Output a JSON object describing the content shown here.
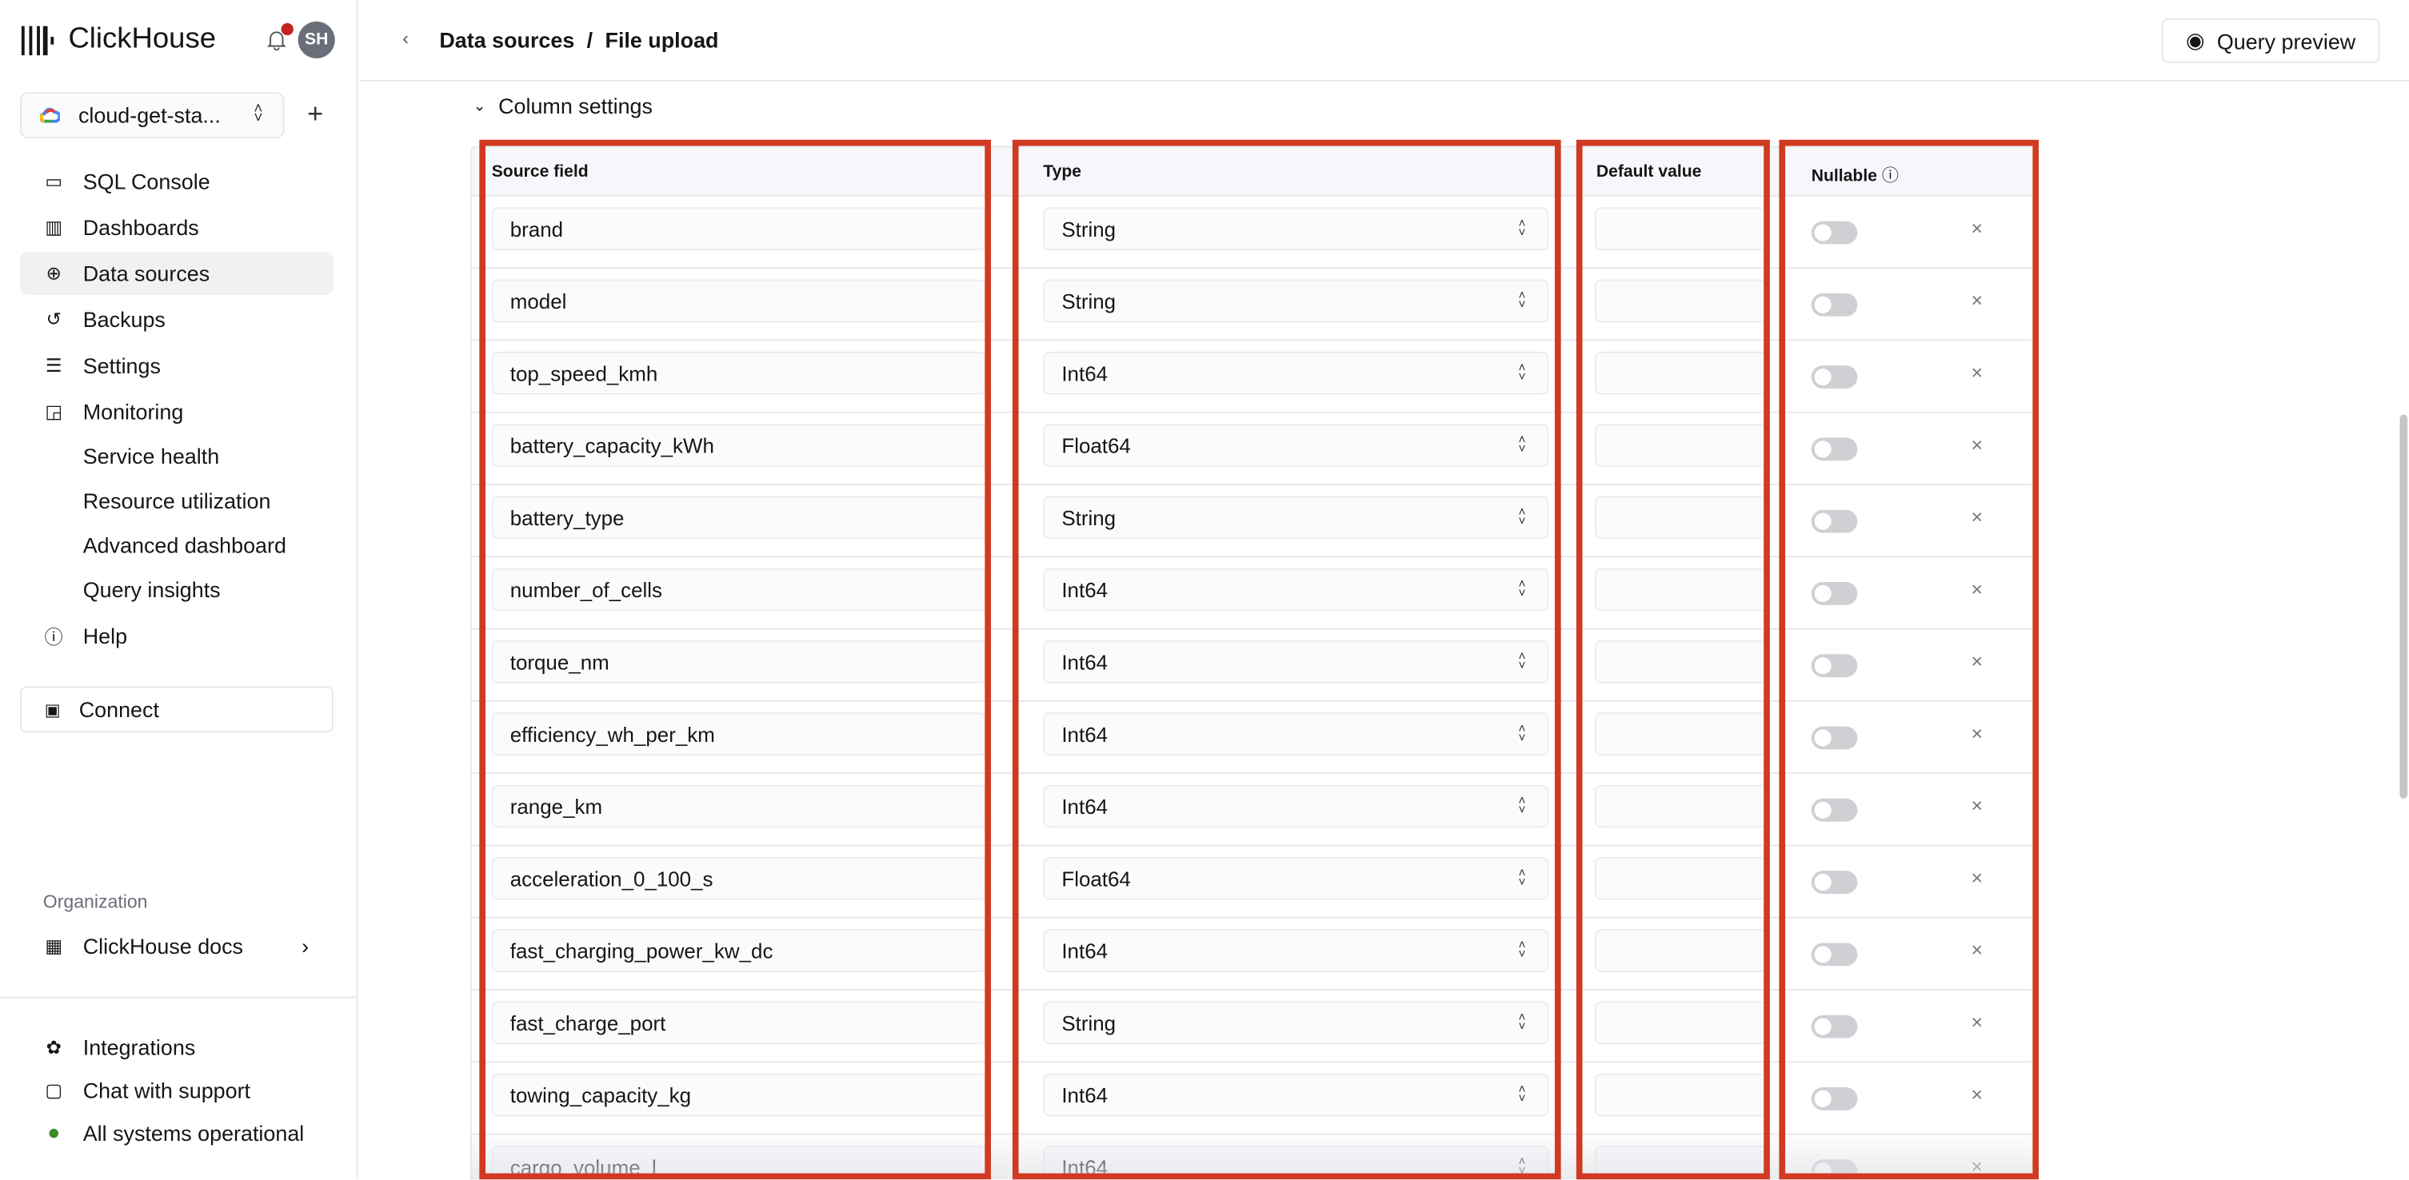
{
  "sidebar": {
    "brand": "ClickHouse",
    "avatar": "SH",
    "service": "cloud-get-sta...",
    "nav": [
      {
        "label": "SQL Console",
        "icon": "sql-console-icon"
      },
      {
        "label": "Dashboards",
        "icon": "dashboards-icon"
      },
      {
        "label": "Data sources",
        "icon": "data-sources-icon",
        "active": true
      },
      {
        "label": "Backups",
        "icon": "backups-icon"
      },
      {
        "label": "Settings",
        "icon": "settings-icon"
      },
      {
        "label": "Monitoring",
        "icon": "monitoring-icon"
      }
    ],
    "monitoring_sub": [
      "Service health",
      "Resource utilization",
      "Advanced dashboard",
      "Query insights"
    ],
    "help": "Help",
    "connect": "Connect",
    "org_label": "Organization",
    "org": "ClickHouse docs",
    "integrations": "Integrations",
    "chat": "Chat with support",
    "status": "All systems operational",
    "status_color": "#3b8a2a"
  },
  "header": {
    "crumb1": "Data sources",
    "sep": "/",
    "crumb2": "File upload",
    "query_preview": "Query preview"
  },
  "section": {
    "title": "Column settings"
  },
  "table": {
    "headers": {
      "source": "Source field",
      "type": "Type",
      "default": "Default value",
      "nullable": "Nullable"
    },
    "rows": [
      {
        "field": "brand",
        "type": "String"
      },
      {
        "field": "model",
        "type": "String"
      },
      {
        "field": "top_speed_kmh",
        "type": "Int64"
      },
      {
        "field": "battery_capacity_kWh",
        "type": "Float64"
      },
      {
        "field": "battery_type",
        "type": "String"
      },
      {
        "field": "number_of_cells",
        "type": "Int64"
      },
      {
        "field": "torque_nm",
        "type": "Int64"
      },
      {
        "field": "efficiency_wh_per_km",
        "type": "Int64"
      },
      {
        "field": "range_km",
        "type": "Int64"
      },
      {
        "field": "acceleration_0_100_s",
        "type": "Float64"
      },
      {
        "field": "fast_charging_power_kw_dc",
        "type": "Int64"
      },
      {
        "field": "fast_charge_port",
        "type": "String"
      },
      {
        "field": "towing_capacity_kg",
        "type": "Int64"
      },
      {
        "field": "cargo_volume_l",
        "type": "Int64"
      }
    ]
  },
  "highlight_color": "#d13a22"
}
